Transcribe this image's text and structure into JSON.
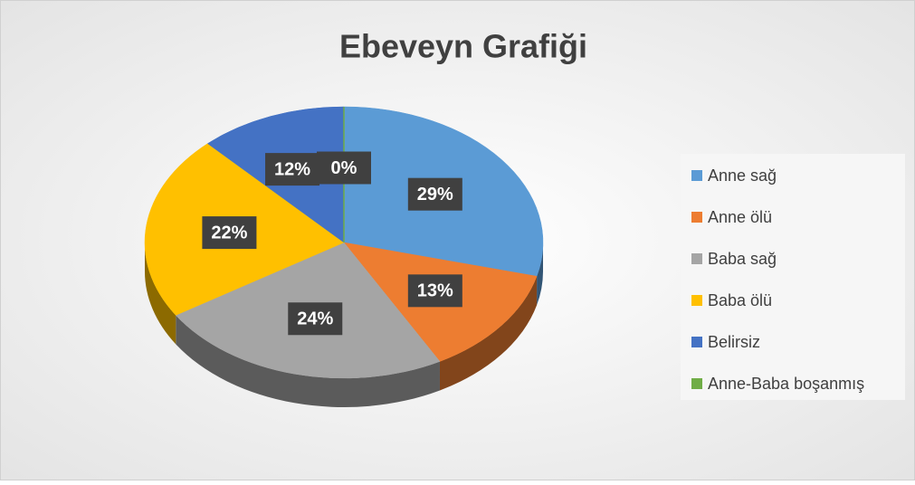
{
  "chart_data": {
    "type": "pie",
    "title": "Ebeveyn Grafiği",
    "categories": [
      "Anne sağ",
      "Anne ölü",
      "Baba sağ",
      "Baba ölü",
      "Belirsiz",
      "Anne-Baba boşanmış"
    ],
    "values": [
      29,
      13,
      24,
      22,
      12,
      0
    ],
    "value_labels": [
      "29%",
      "13%",
      "24%",
      "22%",
      "12%",
      "0%"
    ],
    "colors": [
      "#5b9bd5",
      "#ed7d31",
      "#a5a5a5",
      "#ffc000",
      "#4472c4",
      "#70ad47"
    ],
    "legend": "right"
  }
}
